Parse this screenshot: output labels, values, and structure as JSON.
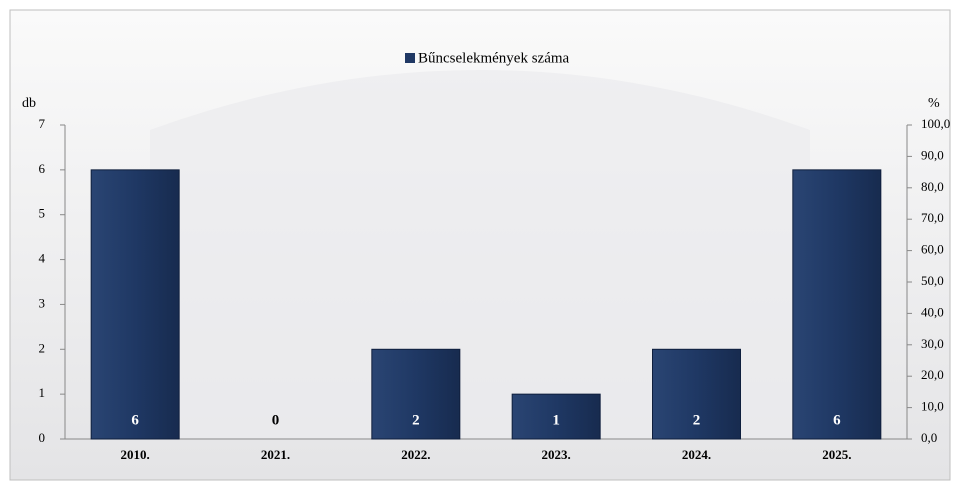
{
  "chart_data": {
    "type": "bar",
    "legend": "Bűncselekmények száma",
    "y_label": "db",
    "y2_label": "%",
    "categories": [
      "2010.",
      "2021.",
      "2022.",
      "2023.",
      "2024.",
      "2025."
    ],
    "values": [
      6,
      0,
      2,
      1,
      2,
      6
    ],
    "color": "#1f3864",
    "ylim": [
      0,
      7
    ],
    "yticks": [
      0,
      1,
      2,
      3,
      4,
      5,
      6,
      7
    ],
    "y2lim": [
      0,
      100
    ],
    "y2ticks": [
      {
        "value": 0,
        "label": "0,0"
      },
      {
        "value": 10,
        "label": "10,0"
      },
      {
        "value": 20,
        "label": "20,0"
      },
      {
        "value": 30,
        "label": "30,0"
      },
      {
        "value": 40,
        "label": "40,0"
      },
      {
        "value": 50,
        "label": "50,0"
      },
      {
        "value": 60,
        "label": "60,0"
      },
      {
        "value": 70,
        "label": "70,0"
      },
      {
        "value": 80,
        "label": "80,0"
      },
      {
        "value": 90,
        "label": "90,0"
      },
      {
        "value": 100,
        "label": "100,0"
      }
    ]
  }
}
